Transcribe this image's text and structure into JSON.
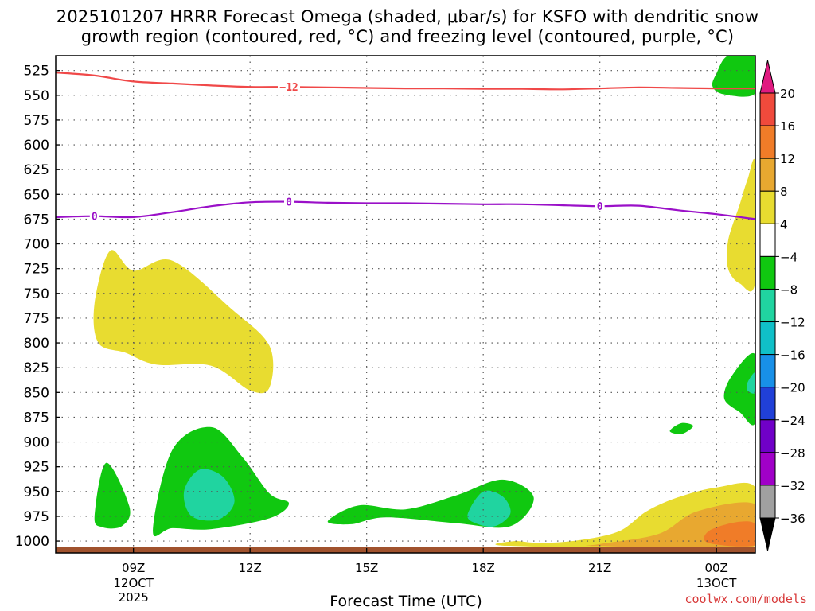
{
  "title": {
    "line1": "2025101207 HRRR Forecast Omega (shaded, μbar/s) for KSFO with dendritic snow",
    "line2": "growth region (contoured, red, °C) and freezing level (contoured, purple, °C)"
  },
  "credit": "coolwx.com/models",
  "chart_data": {
    "type": "heatmap",
    "xlabel": "Forecast Time (UTC)",
    "ylabel": "",
    "x_ticks": [
      {
        "label": "09Z",
        "sub": [
          "12OCT",
          "2025"
        ],
        "hour": 9
      },
      {
        "label": "12Z",
        "sub": [],
        "hour": 12
      },
      {
        "label": "15Z",
        "sub": [],
        "hour": 15
      },
      {
        "label": "18Z",
        "sub": [],
        "hour": 18
      },
      {
        "label": "21Z",
        "sub": [],
        "hour": 21
      },
      {
        "label": "00Z",
        "sub": [
          "13OCT"
        ],
        "hour": 24
      }
    ],
    "xlim_hours": [
      7,
      25
    ],
    "y_ticks": [
      525,
      550,
      575,
      600,
      625,
      650,
      675,
      700,
      725,
      750,
      775,
      800,
      825,
      850,
      875,
      900,
      925,
      950,
      975,
      1000
    ],
    "ylim": [
      510,
      1012
    ],
    "grid": true,
    "colorbar": {
      "labels": [
        "20",
        "16",
        "12",
        "8",
        "4",
        "−4",
        "−8",
        "−12",
        "−16",
        "−20",
        "−24",
        "−28",
        "−32",
        "−36"
      ],
      "colors": [
        "#e01a80",
        "#f04a3c",
        "#f07c28",
        "#e8a830",
        "#e8dc30",
        "#ffffff",
        "#10c810",
        "#20d4a0",
        "#10c0c8",
        "#1890e8",
        "#2040d8",
        "#7000c8",
        "#a000c8",
        "#a0a0a0",
        "#000000"
      ]
    },
    "contours": [
      {
        "name": "-12",
        "color": "#f04848",
        "label": "−12",
        "points": [
          [
            7,
            527
          ],
          [
            8,
            530
          ],
          [
            9,
            536
          ],
          [
            10,
            538
          ],
          [
            11,
            540
          ],
          [
            12,
            541.5
          ],
          [
            13,
            541.5
          ],
          [
            14,
            542
          ],
          [
            15,
            542.5
          ],
          [
            16,
            543
          ],
          [
            17,
            543
          ],
          [
            18,
            543.5
          ],
          [
            19,
            543.5
          ],
          [
            20,
            544
          ],
          [
            21,
            543
          ],
          [
            22,
            542
          ],
          [
            23,
            542.5
          ],
          [
            24,
            543
          ],
          [
            25,
            543
          ]
        ],
        "label_hours": [
          13
        ]
      },
      {
        "name": "0",
        "color": "#9a10c8",
        "label": "0",
        "points": [
          [
            7,
            673
          ],
          [
            8,
            672
          ],
          [
            9,
            673
          ],
          [
            10,
            668
          ],
          [
            11,
            662
          ],
          [
            12,
            658
          ],
          [
            13,
            657.5
          ],
          [
            14,
            658.5
          ],
          [
            15,
            659
          ],
          [
            16,
            659
          ],
          [
            17,
            659.5
          ],
          [
            18,
            660
          ],
          [
            19,
            660
          ],
          [
            20,
            661
          ],
          [
            21,
            662
          ],
          [
            22,
            661.5
          ],
          [
            23,
            666
          ],
          [
            24,
            670
          ],
          [
            25,
            675
          ]
        ],
        "label_hours": [
          8,
          13,
          21
        ]
      }
    ],
    "shaded_regions": [
      {
        "value_band": "4 to 8",
        "color": "#e8dc30",
        "points": [
          [
            8.0,
            760
          ],
          [
            8.4,
            707
          ],
          [
            9.0,
            727
          ],
          [
            10.0,
            717
          ],
          [
            11.5,
            765
          ],
          [
            12.5,
            803
          ],
          [
            12.5,
            845
          ],
          [
            12.0,
            848
          ],
          [
            11.0,
            823
          ],
          [
            9.6,
            822
          ],
          [
            8.8,
            810
          ],
          [
            8.1,
            800
          ]
        ]
      },
      {
        "value_band": "4 to 8",
        "color": "#e8dc30",
        "points": [
          [
            18.8,
            1000
          ],
          [
            19.5,
            1002
          ],
          [
            20.5,
            999
          ],
          [
            21.5,
            990
          ],
          [
            22.2,
            970
          ],
          [
            23.0,
            956
          ],
          [
            24.0,
            946
          ],
          [
            25.0,
            946
          ],
          [
            25.0,
            1005
          ],
          [
            18.8,
            1005
          ]
        ]
      },
      {
        "value_band": "4 to 8",
        "color": "#e8dc30",
        "points": [
          [
            24.3,
            697
          ],
          [
            24.6,
            660
          ],
          [
            24.8,
            635
          ],
          [
            25.0,
            620
          ],
          [
            25.0,
            738
          ],
          [
            24.6,
            740
          ],
          [
            24.3,
            725
          ]
        ]
      },
      {
        "value_band": "8 to 12",
        "color": "#e8a830",
        "points": [
          [
            21.0,
            1003
          ],
          [
            22.5,
            993
          ],
          [
            23.5,
            970
          ],
          [
            25.0,
            963
          ],
          [
            25.0,
            1005
          ],
          [
            21.0,
            1005
          ]
        ]
      },
      {
        "value_band": "12 to 16",
        "color": "#f07c28",
        "points": [
          [
            23.8,
            990
          ],
          [
            24.5,
            981
          ],
          [
            25.0,
            983
          ],
          [
            25.0,
            1004
          ],
          [
            23.8,
            1002
          ]
        ]
      },
      {
        "value_band": "-4 to -8",
        "color": "#10c810",
        "points": [
          [
            8.0,
            975
          ],
          [
            8.3,
            921
          ],
          [
            8.9,
            966
          ],
          [
            8.7,
            985
          ],
          [
            8.2,
            986
          ]
        ]
      },
      {
        "value_band": "-4 to -8",
        "color": "#10c810",
        "points": [
          [
            9.5,
            990
          ],
          [
            10.0,
            908
          ],
          [
            11.0,
            885
          ],
          [
            11.8,
            915
          ],
          [
            12.5,
            952
          ],
          [
            13.0,
            962
          ],
          [
            12.5,
            977
          ],
          [
            11.0,
            988
          ],
          [
            10.0,
            987
          ]
        ]
      },
      {
        "value_band": "-4 to -8",
        "color": "#10c810",
        "points": [
          [
            14.0,
            980
          ],
          [
            14.8,
            964
          ],
          [
            16.0,
            968
          ],
          [
            17.3,
            954
          ],
          [
            18.5,
            938
          ],
          [
            19.3,
            956
          ],
          [
            18.7,
            985
          ],
          [
            17.3,
            982
          ],
          [
            15.5,
            976
          ],
          [
            14.6,
            983
          ]
        ]
      },
      {
        "value_band": "-4 to -8",
        "color": "#10c810",
        "points": [
          [
            24.0,
            528
          ],
          [
            24.3,
            510
          ],
          [
            25.0,
            510
          ],
          [
            25.0,
            548
          ],
          [
            24.2,
            549
          ],
          [
            23.9,
            541
          ]
        ]
      },
      {
        "value_band": "-4 to -8",
        "color": "#10c810",
        "points": [
          [
            24.2,
            856
          ],
          [
            24.4,
            833
          ],
          [
            25.0,
            812
          ],
          [
            25.0,
            880
          ],
          [
            24.6,
            870
          ]
        ]
      },
      {
        "value_band": "-4 to -8",
        "color": "#10c810",
        "points": [
          [
            22.8,
            889
          ],
          [
            23.1,
            881
          ],
          [
            23.4,
            884
          ],
          [
            23.1,
            892
          ]
        ]
      },
      {
        "value_band": "-8 to -12",
        "color": "#20d4a0",
        "points": [
          [
            10.3,
            950
          ],
          [
            10.7,
            928
          ],
          [
            11.3,
            935
          ],
          [
            11.6,
            960
          ],
          [
            11.2,
            978
          ],
          [
            10.5,
            975
          ]
        ]
      },
      {
        "value_band": "-8 to -12",
        "color": "#20d4a0",
        "points": [
          [
            17.6,
            973
          ],
          [
            18.0,
            950
          ],
          [
            18.5,
            955
          ],
          [
            18.7,
            972
          ],
          [
            18.3,
            985
          ],
          [
            17.8,
            982
          ]
        ]
      },
      {
        "value_band": "-8 to -12",
        "color": "#20d4a0",
        "points": [
          [
            24.8,
            840
          ],
          [
            25.0,
            830
          ],
          [
            25.0,
            850
          ],
          [
            24.8,
            848
          ]
        ]
      }
    ],
    "terrain": {
      "color": "#a0522d",
      "from_pressure": 1006
    }
  }
}
